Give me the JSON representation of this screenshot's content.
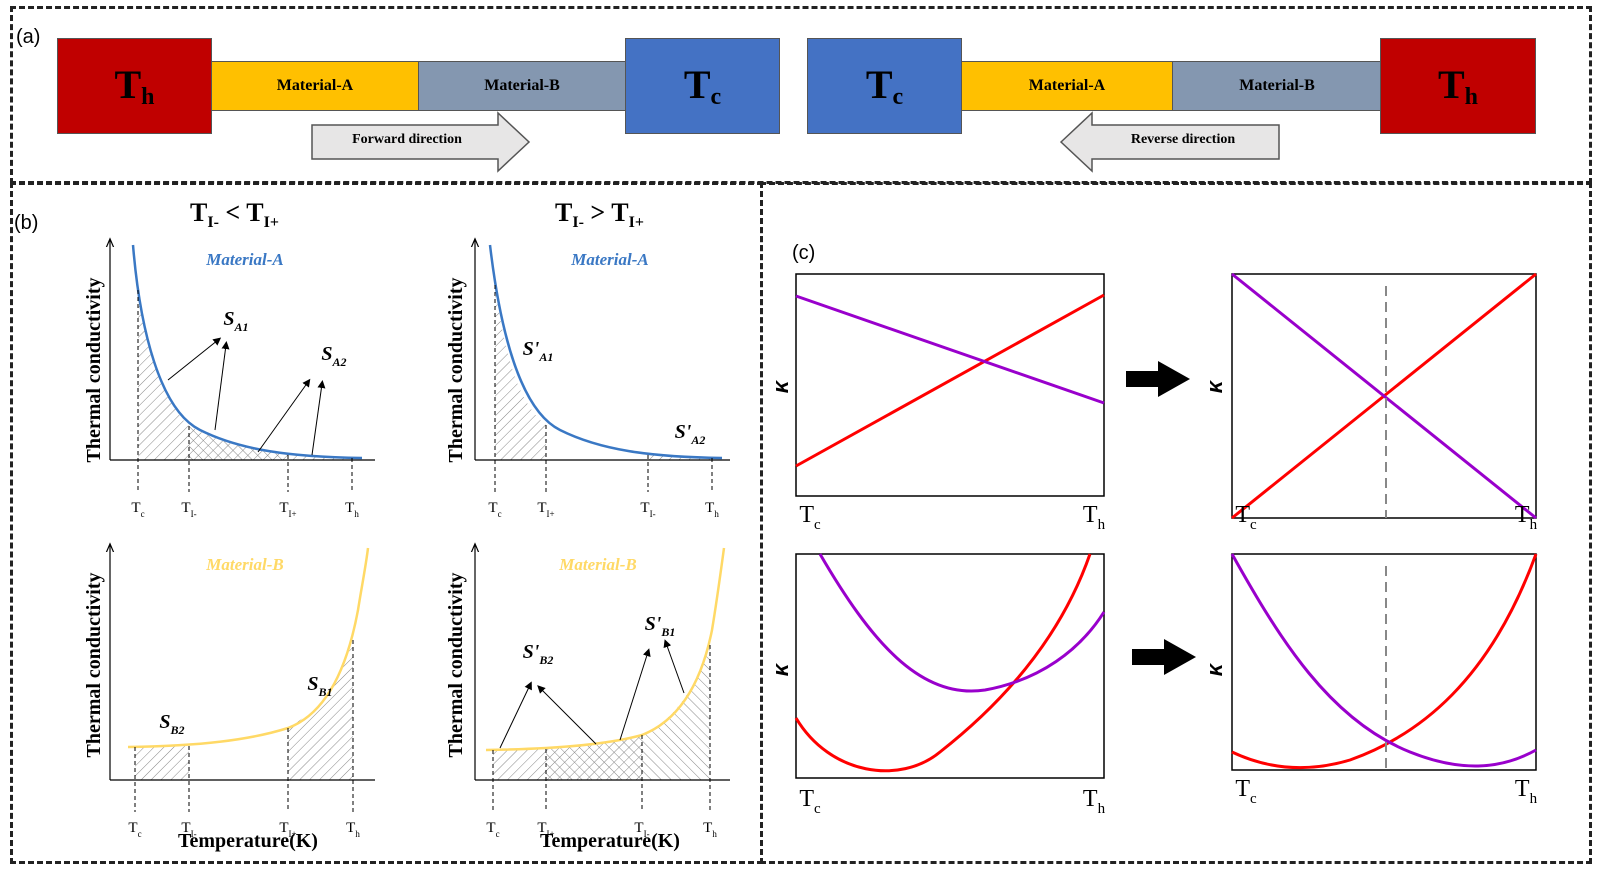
{
  "panel_a": {
    "label": "(a)",
    "left": {
      "hot": "T",
      "hot_sub": "h",
      "mat_a": "Material-A",
      "mat_b": "Material-B",
      "cold": "T",
      "cold_sub": "c",
      "arrow": "Forward direction"
    },
    "right": {
      "cold": "T",
      "cold_sub": "c",
      "mat_a": "Material-A",
      "mat_b": "Material-B",
      "hot": "T",
      "hot_sub": "h",
      "arrow": "Reverse direction"
    }
  },
  "panel_b": {
    "label": "(b)",
    "col1_title": {
      "main": "T",
      "sub1": "I-",
      "op": " < ",
      "main2": "T",
      "sub2": "I+"
    },
    "col2_title": {
      "main": "T",
      "sub1": "I-",
      "op": " > ",
      "main2": "T",
      "sub2": "I+"
    },
    "ylabel": "Thermal conductivity",
    "xlabel": "Temperature(K)",
    "material_a": "Material-A",
    "material_b": "Material-B",
    "ticks_tl": [
      [
        "T",
        "c"
      ],
      [
        "T",
        "I-"
      ],
      [
        "T",
        "I+"
      ],
      [
        "T",
        "h"
      ]
    ],
    "ticks_tr": [
      [
        "T",
        "c"
      ],
      [
        "T",
        "I+"
      ],
      [
        "T",
        "I-"
      ],
      [
        "T",
        "h"
      ]
    ],
    "ticks_bl": [
      [
        "T",
        "c"
      ],
      [
        "T",
        "I-"
      ],
      [
        "T",
        "I+"
      ],
      [
        "T",
        "h"
      ]
    ],
    "ticks_br": [
      [
        "T",
        "c"
      ],
      [
        "T",
        "I+"
      ],
      [
        "T",
        "I-"
      ],
      [
        "T",
        "h"
      ]
    ],
    "areas_tl": [
      [
        "S",
        "A1"
      ],
      [
        "S",
        "A2"
      ]
    ],
    "areas_tr": [
      [
        "S'",
        "A1"
      ],
      [
        "S'",
        "A2"
      ]
    ],
    "areas_bl": [
      [
        "S",
        "B1"
      ],
      [
        "S",
        "B2"
      ]
    ],
    "areas_br": [
      [
        "S'",
        "B1"
      ],
      [
        "S'",
        "B2"
      ]
    ]
  },
  "panel_c": {
    "label": "(c)",
    "ylabel": "κ",
    "tc": [
      "T",
      "c"
    ],
    "th": [
      "T",
      "h"
    ]
  },
  "colors": {
    "hot": "#c00000",
    "cold": "#4472c4",
    "material_a": "#ffc000",
    "material_b": "#8497b0",
    "curve_a": "#3a78c4",
    "curve_b": "#ffd966",
    "red_line": "#ff0000",
    "purple_line": "#9900cc",
    "arrow_fill": "#e7e6e6"
  }
}
